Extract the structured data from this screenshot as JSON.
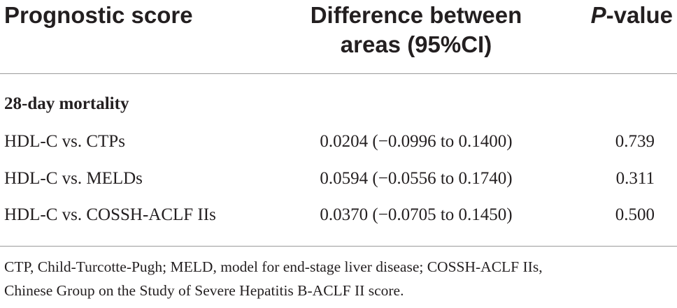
{
  "table": {
    "headers": {
      "score": "Prognostic score",
      "difference_line1": "Difference between",
      "difference_line2": "areas (95%CI)",
      "pvalue_italic": "P",
      "pvalue_rest": "-value"
    },
    "section_label": "28-day mortality",
    "rows": [
      {
        "comparison": "HDL-C vs. CTPs",
        "difference": "0.0204 (−0.0996 to 0.1400)",
        "p_value": "0.739"
      },
      {
        "comparison": "HDL-C vs. MELDs",
        "difference": "0.0594 (−0.0556 to 0.1740)",
        "p_value": "0.311"
      },
      {
        "comparison": "HDL-C vs. COSSH-ACLF IIs",
        "difference": "0.0370 (−0.0705 to 0.1450)",
        "p_value": "0.500"
      }
    ],
    "footnote_line1": "CTP, Child-Turcotte-Pugh; MELD, model for end-stage liver disease; COSSH-ACLF IIs,",
    "footnote_line2": "Chinese Group on the Study of Severe Hepatitis B-ACLF II score."
  }
}
